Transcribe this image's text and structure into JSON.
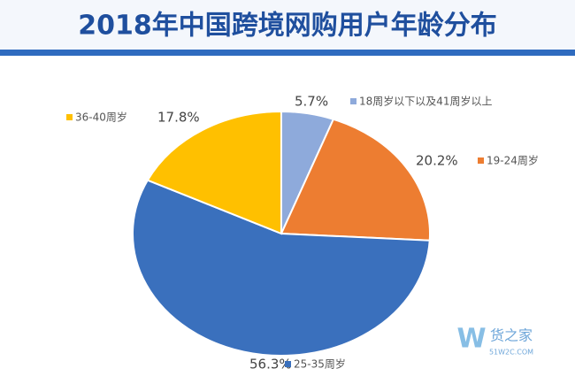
{
  "chart_data": {
    "type": "pie",
    "title": "2018年中国跨境网购用户年龄分布",
    "categories": [
      "18周岁以下以及41周岁以上",
      "19-24周岁",
      "25-35周岁",
      "36-40周岁"
    ],
    "values": [
      5.7,
      20.2,
      56.3,
      17.8
    ],
    "value_labels": [
      "5.7%",
      "20.2%",
      "56.3%",
      "17.8%"
    ],
    "colors": [
      "#8eaadb",
      "#ed7d31",
      "#3a70bd",
      "#ffc000"
    ],
    "watermark": [
      "W",
      "货之家",
      "51W2C.COM"
    ]
  }
}
